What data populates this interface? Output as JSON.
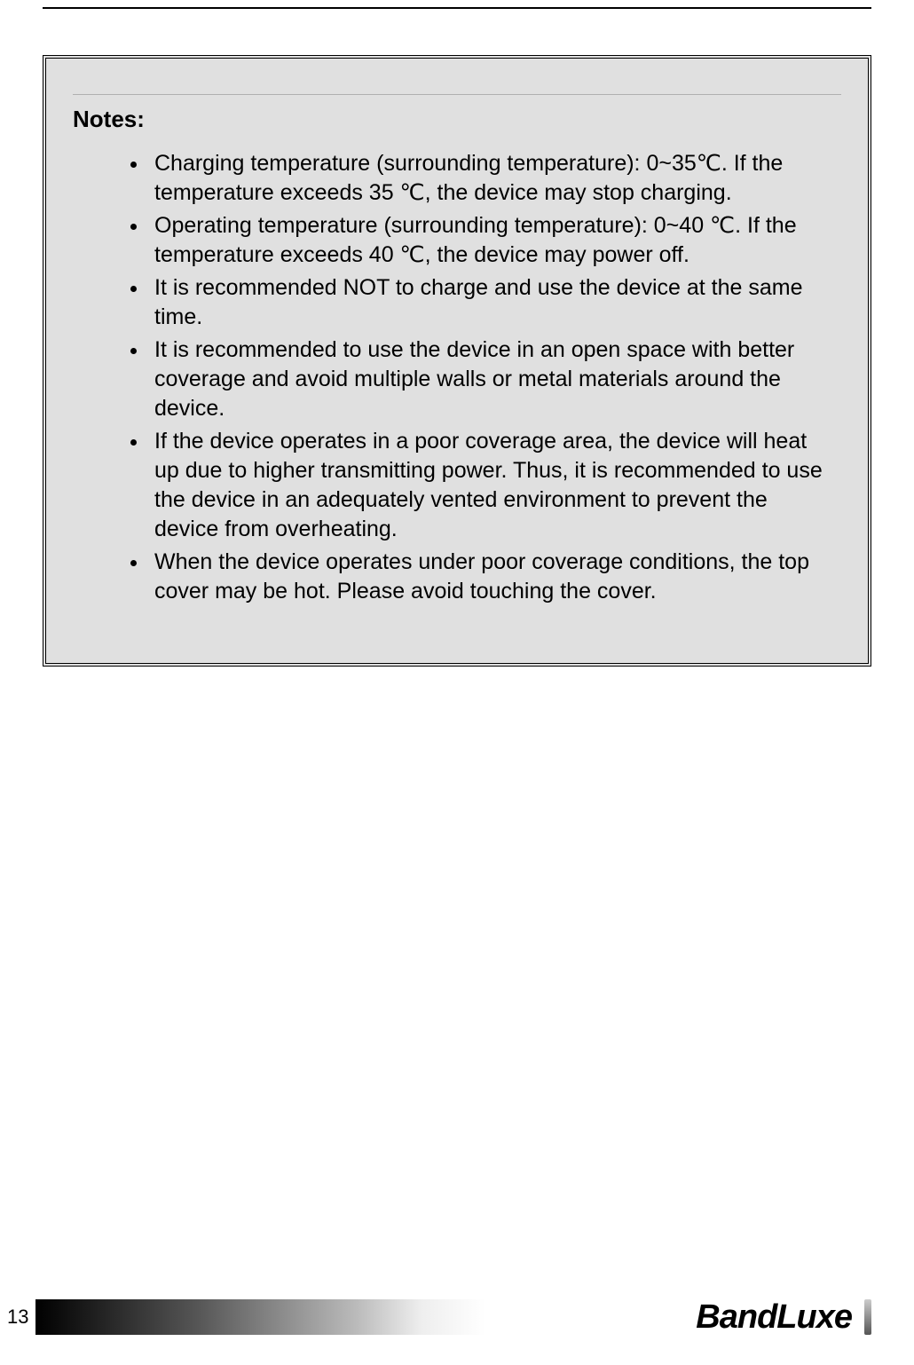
{
  "page": {
    "number": "13"
  },
  "notes": {
    "heading": "Notes:",
    "items": [
      "Charging temperature (surrounding temperature): 0~35℃. If the temperature exceeds 35 ℃, the device may stop charging.",
      "Operating temperature (surrounding temperature): 0~40 ℃. If the temperature exceeds 40 ℃, the device may power off.",
      "It is recommended NOT to charge and use the device at the same time.",
      "It is recommended to use the device in an open space with better coverage and avoid multiple walls or metal materials around the device.",
      "If the device operates in a poor coverage area, the device will heat up due to higher transmitting power. Thus, it is recommended to use the device in an adequately vented environment to prevent the device from overheating.",
      "When the device operates under poor coverage conditions, the top cover may be hot. Please avoid touching the cover."
    ]
  },
  "brand": {
    "name": "BandLuxe"
  },
  "colors": {
    "box_background": "#e0e0e0",
    "border": "#000000",
    "text": "#000000",
    "page_background": "#ffffff"
  }
}
